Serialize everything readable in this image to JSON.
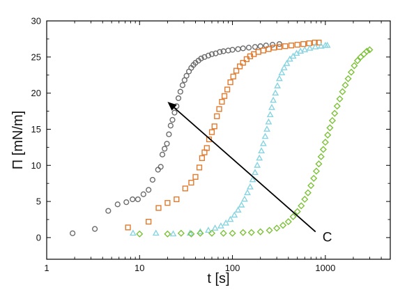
{
  "chart_data": {
    "type": "scatter",
    "xlabel": "t [s]",
    "ylabel": "Π [mN/m]",
    "xscale": "log",
    "xlim": [
      1,
      5000
    ],
    "ylim": [
      -3,
      30
    ],
    "xticks": [
      1,
      10,
      100,
      1000
    ],
    "xtick_labels": [
      "1",
      "10",
      "100",
      "1000"
    ],
    "yticks": [
      0,
      5,
      10,
      15,
      20,
      25,
      30
    ],
    "ytick_labels": [
      "0",
      "5",
      "10",
      "15",
      "20",
      "25",
      "30"
    ],
    "grid": false,
    "legend": "none",
    "annotation": {
      "text": "C",
      "arrow_from": [
        900,
        1.0
      ],
      "arrow_to": [
        20,
        18.8
      ]
    },
    "series": [
      {
        "marker": "circle",
        "color": "#6b6b6b",
        "points": [
          [
            1.9,
            0.6
          ],
          [
            3.3,
            1.2
          ],
          [
            4.6,
            3.7
          ],
          [
            5.8,
            4.6
          ],
          [
            7.2,
            4.9
          ],
          [
            8.4,
            5.3
          ],
          [
            9.6,
            5.3
          ],
          [
            11.0,
            6.0
          ],
          [
            12.5,
            6.6
          ],
          [
            13.8,
            8.0
          ],
          [
            15.8,
            9.4
          ],
          [
            16.9,
            9.8
          ],
          [
            17.6,
            11.5
          ],
          [
            18.6,
            12.3
          ],
          [
            19.7,
            13.0
          ],
          [
            20.7,
            14.3
          ],
          [
            21.6,
            15.5
          ],
          [
            22.6,
            16.3
          ],
          [
            23.8,
            17.3
          ],
          [
            25.0,
            18.2
          ],
          [
            26.2,
            19.3
          ],
          [
            27.5,
            20.2
          ],
          [
            29.0,
            21.1
          ],
          [
            30.5,
            21.8
          ],
          [
            32.0,
            22.4
          ],
          [
            34.0,
            23.0
          ],
          [
            36.0,
            23.5
          ],
          [
            38.0,
            23.9
          ],
          [
            40.0,
            24.2
          ],
          [
            43.0,
            24.5
          ],
          [
            46.0,
            24.8
          ],
          [
            50.0,
            25.0
          ],
          [
            55.0,
            25.2
          ],
          [
            60.0,
            25.4
          ],
          [
            66.0,
            25.5
          ],
          [
            73.0,
            25.7
          ],
          [
            80.0,
            25.8
          ],
          [
            90.0,
            25.9
          ],
          [
            100.0,
            26.0
          ],
          [
            115.0,
            26.1
          ],
          [
            130.0,
            26.2
          ],
          [
            150.0,
            26.3
          ],
          [
            175.0,
            26.4
          ],
          [
            200.0,
            26.5
          ],
          [
            230.0,
            26.6
          ],
          [
            270.0,
            26.7
          ],
          [
            320.0,
            26.8
          ]
        ]
      },
      {
        "marker": "square",
        "color": "#e07a2e",
        "points": [
          [
            7.5,
            1.4
          ],
          [
            12.5,
            2.2
          ],
          [
            16.0,
            4.1
          ],
          [
            20.0,
            4.8
          ],
          [
            25.0,
            5.3
          ],
          [
            31.0,
            6.8
          ],
          [
            36.0,
            7.6
          ],
          [
            40.0,
            8.4
          ],
          [
            44.0,
            9.7
          ],
          [
            47.0,
            11.0
          ],
          [
            50.0,
            11.8
          ],
          [
            53.0,
            12.4
          ],
          [
            56.0,
            13.6
          ],
          [
            60.0,
            14.6
          ],
          [
            64.0,
            15.4
          ],
          [
            68.0,
            16.8
          ],
          [
            72.0,
            17.8
          ],
          [
            77.0,
            18.8
          ],
          [
            82.0,
            19.6
          ],
          [
            88.0,
            20.5
          ],
          [
            95.0,
            21.5
          ],
          [
            102.0,
            22.3
          ],
          [
            110.0,
            23.1
          ],
          [
            120.0,
            23.7
          ],
          [
            130.0,
            24.2
          ],
          [
            142.0,
            24.7
          ],
          [
            155.0,
            25.1
          ],
          [
            170.0,
            25.4
          ],
          [
            190.0,
            25.7
          ],
          [
            215.0,
            25.9
          ],
          [
            245.0,
            26.1
          ],
          [
            280.0,
            26.3
          ],
          [
            320.0,
            26.4
          ],
          [
            370.0,
            26.5
          ],
          [
            430.0,
            26.6
          ],
          [
            500.0,
            26.7
          ],
          [
            580.0,
            26.8
          ],
          [
            670.0,
            26.9
          ],
          [
            770.0,
            27.0
          ],
          [
            850.0,
            27.0
          ]
        ]
      },
      {
        "marker": "triangle",
        "color": "#88d4e0",
        "points": [
          [
            8.5,
            0.6
          ],
          [
            15.0,
            0.6
          ],
          [
            23.0,
            0.5
          ],
          [
            35.0,
            0.6
          ],
          [
            45.0,
            0.8
          ],
          [
            55.0,
            1.0
          ],
          [
            65.0,
            1.3
          ],
          [
            75.0,
            1.6
          ],
          [
            85.0,
            2.0
          ],
          [
            95.0,
            2.5
          ],
          [
            105.0,
            3.1
          ],
          [
            115.0,
            3.8
          ],
          [
            125.0,
            4.5
          ],
          [
            135.0,
            5.3
          ],
          [
            145.0,
            6.2
          ],
          [
            155.0,
            7.0
          ],
          [
            165.0,
            8.0
          ],
          [
            175.0,
            9.0
          ],
          [
            185.0,
            10.0
          ],
          [
            195.0,
            11.0
          ],
          [
            205.0,
            12.0
          ],
          [
            215.0,
            13.0
          ],
          [
            225.0,
            14.0
          ],
          [
            235.0,
            15.0
          ],
          [
            245.0,
            16.0
          ],
          [
            255.0,
            17.0
          ],
          [
            265.0,
            18.0
          ],
          [
            275.0,
            19.0
          ],
          [
            290.0,
            20.0
          ],
          [
            305.0,
            21.0
          ],
          [
            320.0,
            22.0
          ],
          [
            340.0,
            22.8
          ],
          [
            360.0,
            23.5
          ],
          [
            385.0,
            24.1
          ],
          [
            415.0,
            24.7
          ],
          [
            450.0,
            25.1
          ],
          [
            490.0,
            25.5
          ],
          [
            540.0,
            25.8
          ],
          [
            600.0,
            26.0
          ],
          [
            680.0,
            26.2
          ],
          [
            780.0,
            26.4
          ],
          [
            900.0,
            26.5
          ],
          [
            1000.0,
            26.6
          ],
          [
            1050.0,
            26.6
          ]
        ]
      },
      {
        "marker": "diamond",
        "color": "#7dc23a",
        "points": [
          [
            10.0,
            0.5
          ],
          [
            20.0,
            0.5
          ],
          [
            28.0,
            0.6
          ],
          [
            36.0,
            0.5
          ],
          [
            45.0,
            0.6
          ],
          [
            60.0,
            0.6
          ],
          [
            80.0,
            0.6
          ],
          [
            100.0,
            0.6
          ],
          [
            130.0,
            0.7
          ],
          [
            160.0,
            0.7
          ],
          [
            200.0,
            0.8
          ],
          [
            250.0,
            1.0
          ],
          [
            300.0,
            1.3
          ],
          [
            350.0,
            1.7
          ],
          [
            400.0,
            2.2
          ],
          [
            450.0,
            2.9
          ],
          [
            500.0,
            3.6
          ],
          [
            550.0,
            4.4
          ],
          [
            600.0,
            5.3
          ],
          [
            650.0,
            6.2
          ],
          [
            700.0,
            7.2
          ],
          [
            750.0,
            8.2
          ],
          [
            800.0,
            9.2
          ],
          [
            850.0,
            10.2
          ],
          [
            900.0,
            11.2
          ],
          [
            950.0,
            12.2
          ],
          [
            1000.0,
            13.2
          ],
          [
            1060.0,
            14.2
          ],
          [
            1120.0,
            15.2
          ],
          [
            1190.0,
            16.2
          ],
          [
            1260.0,
            17.2
          ],
          [
            1340.0,
            18.2
          ],
          [
            1430.0,
            19.2
          ],
          [
            1530.0,
            20.2
          ],
          [
            1640.0,
            21.1
          ],
          [
            1760.0,
            22.0
          ],
          [
            1900.0,
            22.9
          ],
          [
            2050.0,
            23.8
          ],
          [
            2220.0,
            24.5
          ],
          [
            2400.0,
            25.0
          ],
          [
            2600.0,
            25.4
          ],
          [
            2800.0,
            25.8
          ],
          [
            3000.0,
            26.0
          ]
        ]
      }
    ]
  }
}
